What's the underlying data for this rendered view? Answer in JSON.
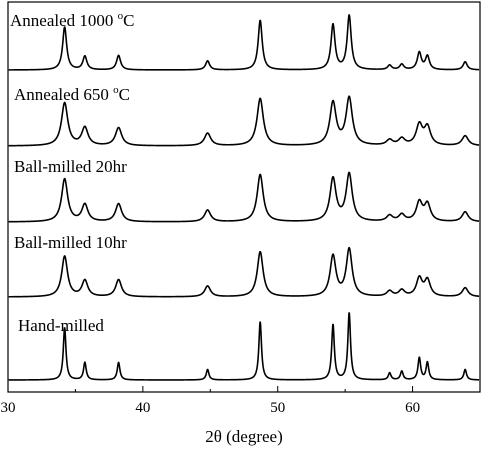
{
  "chart_data": {
    "type": "line",
    "xlabel": "2θ (degree)",
    "ylabel": "",
    "xlim": [
      30,
      65
    ],
    "x_ticks": [
      30,
      40,
      50,
      60
    ],
    "x_tick_labels": [
      "30",
      "40",
      "50",
      "60"
    ],
    "y_ticks_shown": false,
    "grid": false,
    "peaks_2theta": [
      34.2,
      35.7,
      38.2,
      44.8,
      48.7,
      54.1,
      55.3,
      58.3,
      59.2,
      60.5,
      61.1,
      63.9
    ],
    "series": [
      {
        "name": "Annealed 1000 °C",
        "label_main": "Annealed 1000 ",
        "label_sup": "o",
        "label_unit": "C",
        "intensities": [
          0.95,
          0.3,
          0.32,
          0.2,
          1.1,
          1.0,
          1.2,
          0.1,
          0.12,
          0.38,
          0.3,
          0.18
        ],
        "width": 0.18
      },
      {
        "name": "Annealed 650 °C",
        "label_main": "Annealed 650 ",
        "label_sup": "o",
        "label_unit": "C",
        "intensities": [
          0.95,
          0.4,
          0.4,
          0.28,
          1.05,
          0.95,
          1.05,
          0.12,
          0.15,
          0.45,
          0.4,
          0.22
        ],
        "width": 0.28
      },
      {
        "name": "Ball-milled 20hr",
        "label_main": "Ball-milled 20hr",
        "intensities": [
          0.95,
          0.38,
          0.4,
          0.26,
          1.05,
          0.95,
          1.05,
          0.13,
          0.15,
          0.42,
          0.38,
          0.22
        ],
        "width": 0.27
      },
      {
        "name": "Ball-milled 10hr",
        "label_main": "Ball-milled 10hr",
        "intensities": [
          0.9,
          0.36,
          0.38,
          0.24,
          1.0,
          0.9,
          1.05,
          0.12,
          0.14,
          0.4,
          0.36,
          0.2
        ],
        "width": 0.26
      },
      {
        "name": "Hand-milled",
        "label_main": "Hand-milled",
        "intensities": [
          0.9,
          0.3,
          0.3,
          0.18,
          1.0,
          0.95,
          1.15,
          0.12,
          0.15,
          0.38,
          0.3,
          0.18
        ],
        "width": 0.12
      }
    ]
  }
}
